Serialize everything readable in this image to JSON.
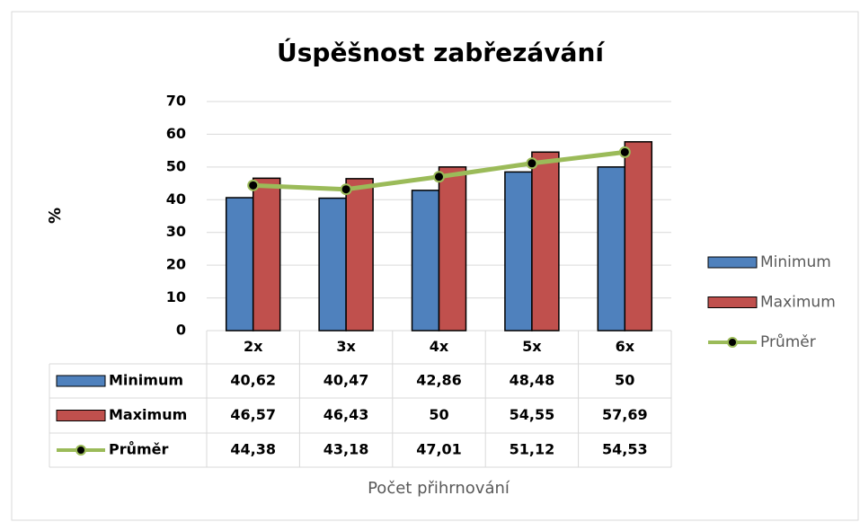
{
  "chart_data": {
    "type": "bar",
    "title": "Úspěšnost zabřezávání",
    "y_label": "%",
    "x_label": "Počet přihrnování",
    "categories": [
      "2x",
      "3x",
      "4x",
      "5x",
      "6x"
    ],
    "series": [
      {
        "name": "Minimum",
        "type": "bar",
        "color": "#4f81bd",
        "values": [
          40.62,
          40.47,
          42.86,
          48.48,
          50
        ],
        "value_labels": [
          "40,62",
          "40,47",
          "42,86",
          "48,48",
          "50"
        ]
      },
      {
        "name": "Maximum",
        "type": "bar",
        "color": "#c0504d",
        "values": [
          46.57,
          46.43,
          50,
          54.55,
          57.69
        ],
        "value_labels": [
          "46,57",
          "46,43",
          "50",
          "54,55",
          "57,69"
        ]
      },
      {
        "name": "Průměr",
        "type": "line",
        "color": "#9bbb59",
        "values": [
          44.38,
          43.18,
          47.01,
          51.12,
          54.53
        ],
        "value_labels": [
          "44,38",
          "43,18",
          "47,01",
          "51,12",
          "54,53"
        ]
      }
    ],
    "ylim": [
      0,
      70
    ],
    "yticks": [
      0,
      10,
      20,
      30,
      40,
      50,
      60,
      70
    ],
    "grid": true,
    "legend": "right"
  }
}
